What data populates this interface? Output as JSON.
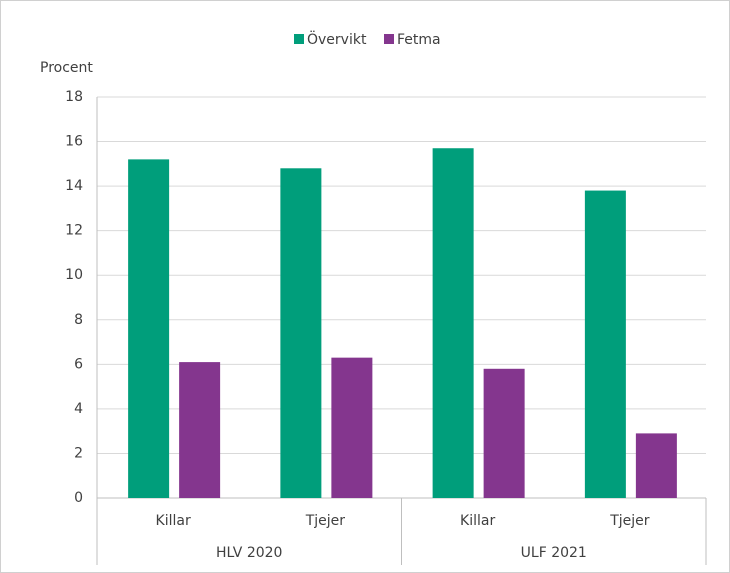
{
  "chart_data": {
    "type": "bar",
    "y_label": "Procent",
    "groups": [
      {
        "name": "HLV 2020",
        "categories": [
          "Killar",
          "Tjejer"
        ]
      },
      {
        "name": "ULF 2021",
        "categories": [
          "Killar",
          "Tjejer"
        ]
      }
    ],
    "series": [
      {
        "name": "Övervikt",
        "color": "#009e7b",
        "values": [
          15.2,
          14.8,
          15.7,
          13.8
        ]
      },
      {
        "name": "Fetma",
        "color": "#84368e",
        "values": [
          6.1,
          6.3,
          5.8,
          2.9
        ]
      }
    ],
    "ylim": [
      0,
      18
    ],
    "yticks": [
      0,
      2,
      4,
      6,
      8,
      10,
      12,
      14,
      16,
      18
    ],
    "grid": true,
    "legend": "top"
  }
}
